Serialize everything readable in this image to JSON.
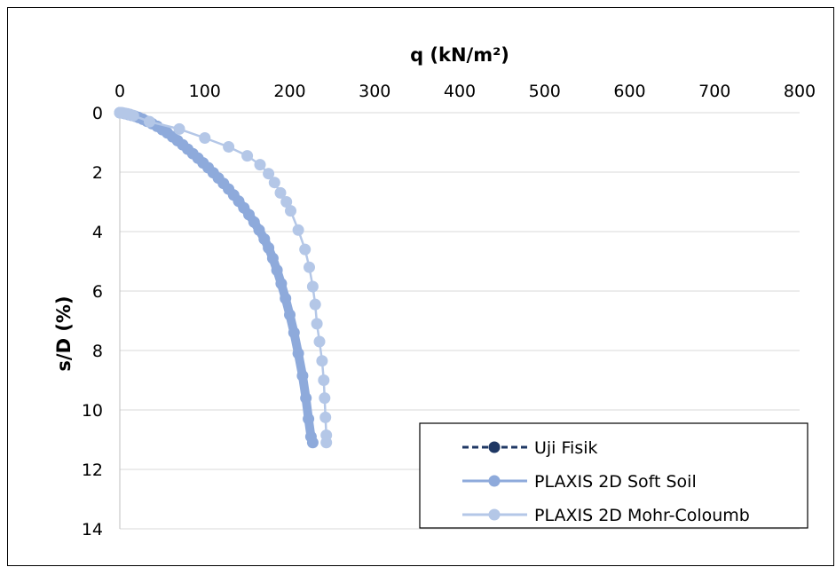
{
  "chart_data": {
    "type": "scatter",
    "x_axis": {
      "label": "q (kN/m²)",
      "position": "top",
      "range": [
        0,
        800
      ],
      "ticks": [
        "0",
        "100",
        "200",
        "300",
        "400",
        "500",
        "600",
        "700",
        "800"
      ]
    },
    "y_axis": {
      "label": "s/D (%)",
      "range": [
        0,
        14
      ],
      "reversed": true,
      "ticks": [
        "0",
        "2",
        "4",
        "6",
        "8",
        "10",
        "12",
        "14"
      ]
    },
    "grid": "horizontal",
    "legend": "bottom-right",
    "series": [
      {
        "name": "Uji Fisik",
        "color": "#1f3864",
        "line_style": "dashed",
        "marker": "circle",
        "points": []
      },
      {
        "name": "PLAXIS 2D Soft Soil",
        "color": "#8eaadb",
        "line_style": "solid",
        "marker": "circle",
        "dense": true,
        "points": [
          [
            0,
            0
          ],
          [
            3,
            0.01
          ],
          [
            6,
            0.03
          ],
          [
            10,
            0.06
          ],
          [
            14,
            0.09
          ],
          [
            18,
            0.12
          ],
          [
            22,
            0.16
          ],
          [
            27,
            0.22
          ],
          [
            32,
            0.29
          ],
          [
            38,
            0.37
          ],
          [
            44,
            0.46
          ],
          [
            50,
            0.57
          ],
          [
            56,
            0.68
          ],
          [
            62,
            0.81
          ],
          [
            68,
            0.94
          ],
          [
            74,
            1.08
          ],
          [
            80,
            1.23
          ],
          [
            86,
            1.38
          ],
          [
            92,
            1.53
          ],
          [
            98,
            1.69
          ],
          [
            104,
            1.85
          ],
          [
            110,
            2.02
          ],
          [
            116,
            2.2
          ],
          [
            122,
            2.38
          ],
          [
            128,
            2.57
          ],
          [
            134,
            2.77
          ],
          [
            140,
            2.98
          ],
          [
            146,
            3.2
          ],
          [
            152,
            3.43
          ],
          [
            158,
            3.68
          ],
          [
            164,
            3.95
          ],
          [
            170,
            4.25
          ],
          [
            175,
            4.55
          ],
          [
            180,
            4.9
          ],
          [
            185,
            5.3
          ],
          [
            190,
            5.75
          ],
          [
            195,
            6.25
          ],
          [
            200,
            6.8
          ],
          [
            205,
            7.4
          ],
          [
            210,
            8.1
          ],
          [
            215,
            8.85
          ],
          [
            219,
            9.6
          ],
          [
            222,
            10.3
          ],
          [
            225,
            10.9
          ],
          [
            227,
            11.1
          ]
        ]
      },
      {
        "name": "PLAXIS 2D Mohr-Coloumb",
        "color": "#b4c7e7",
        "line_style": "solid",
        "marker": "circle",
        "dense": false,
        "points": [
          [
            0,
            0
          ],
          [
            3,
            0.01
          ],
          [
            6,
            0.02
          ],
          [
            9,
            0.04
          ],
          [
            12,
            0.06
          ],
          [
            16,
            0.1
          ],
          [
            35,
            0.3
          ],
          [
            70,
            0.55
          ],
          [
            100,
            0.85
          ],
          [
            128,
            1.15
          ],
          [
            150,
            1.45
          ],
          [
            165,
            1.75
          ],
          [
            175,
            2.05
          ],
          [
            182,
            2.35
          ],
          [
            189,
            2.7
          ],
          [
            196,
            3.0
          ],
          [
            201,
            3.3
          ],
          [
            210,
            3.95
          ],
          [
            218,
            4.6
          ],
          [
            223,
            5.2
          ],
          [
            227,
            5.85
          ],
          [
            230,
            6.45
          ],
          [
            232,
            7.1
          ],
          [
            235,
            7.7
          ],
          [
            238,
            8.35
          ],
          [
            240,
            9.0
          ],
          [
            241,
            9.6
          ],
          [
            242,
            10.25
          ],
          [
            243,
            10.85
          ],
          [
            243,
            11.1
          ]
        ]
      }
    ]
  }
}
